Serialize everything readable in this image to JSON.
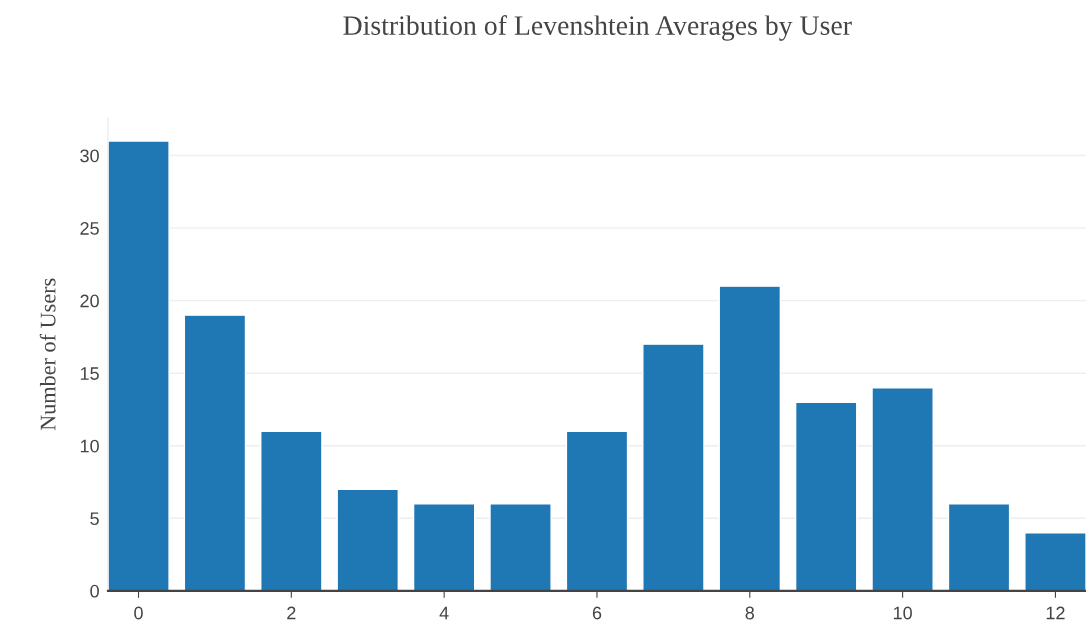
{
  "chart_data": {
    "type": "bar",
    "title": "Distribution of Levenshtein Averages by User",
    "ylabel": "Number of Users",
    "x": [
      0,
      1,
      2,
      3,
      4,
      5,
      6,
      7,
      8,
      9,
      10,
      11,
      12
    ],
    "values": [
      31,
      19,
      11,
      7,
      6,
      6,
      11,
      17,
      21,
      13,
      14,
      6,
      4
    ],
    "color": "#1f77b4",
    "xlim": [
      -0.4,
      12.4
    ],
    "xticks": [
      0,
      2,
      4,
      6,
      8,
      10,
      12
    ],
    "ylim": [
      0,
      32.6
    ],
    "yticks": [
      0,
      5,
      10,
      15,
      20,
      25,
      30
    ],
    "grid": "y"
  }
}
